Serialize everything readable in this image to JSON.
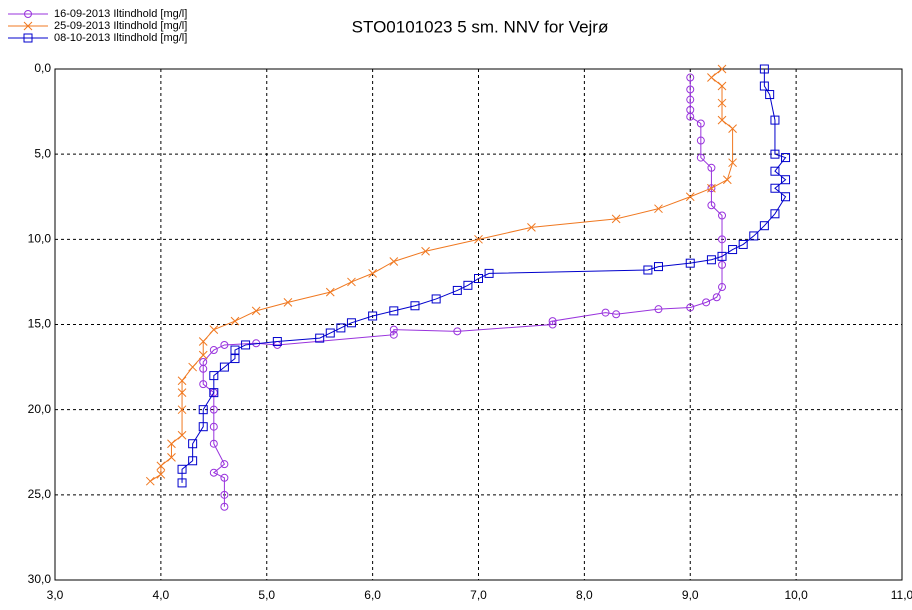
{
  "chart_data": {
    "type": "line",
    "title": "STO0101023 5 sm. NNV for Vejrø",
    "xlim": [
      3,
      11
    ],
    "ylim": [
      30,
      0
    ],
    "grid": true,
    "legend": "top-left",
    "xticks": [
      {
        "value": 3,
        "label": "3,0"
      },
      {
        "value": 4,
        "label": "4,0"
      },
      {
        "value": 5,
        "label": "5,0"
      },
      {
        "value": 6,
        "label": "6,0"
      },
      {
        "value": 7,
        "label": "7,0"
      },
      {
        "value": 8,
        "label": "8,0"
      },
      {
        "value": 9,
        "label": "9,0"
      },
      {
        "value": 10,
        "label": "10,0"
      },
      {
        "value": 11,
        "label": "11,0"
      }
    ],
    "yticks": [
      {
        "value": 0,
        "label": "0,0"
      },
      {
        "value": 5,
        "label": "5,0"
      },
      {
        "value": 10,
        "label": "10,0"
      },
      {
        "value": 15,
        "label": "15,0"
      },
      {
        "value": 20,
        "label": "20,0"
      },
      {
        "value": 25,
        "label": "25,0"
      },
      {
        "value": 30,
        "label": "30,0"
      }
    ],
    "series": [
      {
        "name": "16-09-2013 Iltindhold [mg/l]",
        "color": "#9933dd",
        "marker": "circle",
        "x": [
          9.0,
          9.0,
          9.0,
          9.0,
          9.0,
          9.1,
          9.1,
          9.1,
          9.2,
          9.2,
          9.2,
          9.3,
          9.3,
          9.3,
          9.3,
          9.25,
          9.15,
          9.0,
          8.7,
          8.3,
          8.2,
          7.7,
          7.7,
          6.8,
          6.2,
          6.2,
          5.1,
          4.9,
          4.6,
          4.5,
          4.4,
          4.4,
          4.4,
          4.5,
          4.5,
          4.5,
          4.5,
          4.6,
          4.5,
          4.6,
          4.6,
          4.6
        ],
        "y": [
          0.5,
          1.2,
          1.8,
          2.4,
          2.8,
          3.2,
          4.2,
          5.2,
          5.8,
          7.0,
          8.0,
          8.6,
          10.0,
          11.5,
          12.8,
          13.4,
          13.7,
          14.0,
          14.1,
          14.4,
          14.3,
          14.8,
          15.0,
          15.4,
          15.3,
          15.6,
          16.2,
          16.1,
          16.2,
          16.5,
          17.2,
          17.6,
          18.5,
          19.0,
          20.0,
          21.0,
          22.0,
          23.2,
          23.7,
          24.0,
          25.0,
          25.7
        ]
      },
      {
        "name": "25-09-2013 Iltindhold [mg/l]",
        "color": "#f07820",
        "marker": "x",
        "x": [
          9.3,
          9.2,
          9.3,
          9.3,
          9.3,
          9.4,
          9.4,
          9.35,
          9.2,
          9.0,
          8.7,
          8.3,
          7.5,
          7.0,
          6.5,
          6.2,
          6.0,
          5.8,
          5.6,
          5.2,
          4.9,
          4.7,
          4.5,
          4.4,
          4.4,
          4.3,
          4.2,
          4.2,
          4.2,
          4.2,
          4.1,
          4.1,
          4.0,
          4.0,
          3.9
        ],
        "y": [
          0.0,
          0.5,
          1.0,
          2.0,
          3.0,
          3.5,
          5.5,
          6.5,
          7.0,
          7.5,
          8.2,
          8.8,
          9.3,
          10.0,
          10.7,
          11.3,
          12.0,
          12.5,
          13.1,
          13.7,
          14.2,
          14.8,
          15.3,
          16.0,
          16.8,
          17.5,
          18.3,
          19.0,
          20.0,
          21.5,
          22.0,
          22.8,
          23.3,
          23.8,
          24.2
        ]
      },
      {
        "name": "08-10-2013 Iltindhold [mg/l]",
        "color": "#0000cc",
        "marker": "square",
        "x": [
          9.7,
          9.7,
          9.75,
          9.8,
          9.8,
          9.9,
          9.8,
          9.9,
          9.8,
          9.9,
          9.8,
          9.7,
          9.6,
          9.5,
          9.4,
          9.3,
          9.2,
          9.0,
          8.7,
          8.6,
          7.1,
          7.0,
          6.9,
          6.8,
          6.6,
          6.4,
          6.2,
          6.0,
          5.8,
          5.7,
          5.6,
          5.5,
          5.1,
          4.8,
          4.7,
          4.7,
          4.6,
          4.5,
          4.5,
          4.4,
          4.4,
          4.3,
          4.3,
          4.2,
          4.2
        ],
        "y": [
          0.0,
          1.0,
          1.5,
          3.0,
          5.0,
          5.2,
          6.0,
          6.5,
          7.0,
          7.5,
          8.5,
          9.2,
          9.8,
          10.3,
          10.6,
          11.0,
          11.2,
          11.4,
          11.6,
          11.8,
          12.0,
          12.3,
          12.7,
          13.0,
          13.5,
          13.9,
          14.2,
          14.5,
          14.9,
          15.2,
          15.5,
          15.8,
          16.0,
          16.2,
          16.5,
          17.0,
          17.5,
          18.0,
          19.0,
          20.0,
          21.0,
          22.0,
          23.0,
          23.5,
          24.3
        ]
      }
    ]
  }
}
